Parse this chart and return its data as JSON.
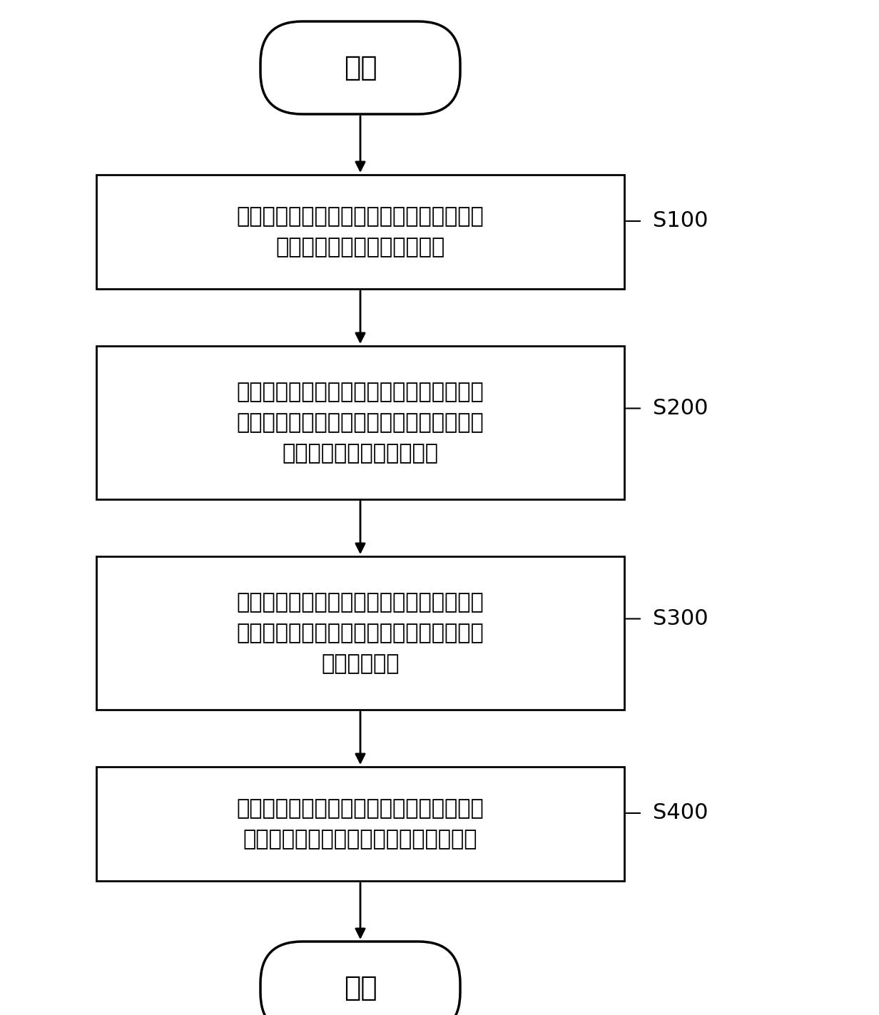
{
  "background_color": "#ffffff",
  "fig_width": 12.32,
  "fig_height": 14.23,
  "start_text": "开始",
  "end_text": "结束",
  "boxes": [
    {
      "label": "获取从每个炮点出发并经过第一成像点后到\n达每个检波点的地震波射线对",
      "tag": "S100",
      "num_lines": 2
    },
    {
      "label": "基于所述地震波射线对在所述第一成像点处\n形成的散射夹角的大小，将所述地震波射线\n对划分入相应的角度区间中",
      "tag": "S200",
      "num_lines": 3
    },
    {
      "label": "分别对所述每个角度区间的所述地震波射线\n对进行偏移叠加，获得每个角度区间的参数\n组合的反演值",
      "tag": "S300",
      "num_lines": 3
    },
    {
      "label": "基于每个角度区间的参数组合的反演值获取\n所述第一成像点的各个扰动参数的反演值",
      "tag": "S400",
      "num_lines": 2
    }
  ],
  "box_color": "#ffffff",
  "box_edge_color": "#000000",
  "text_color": "#000000",
  "arrow_color": "#000000",
  "line_color": "#000000"
}
